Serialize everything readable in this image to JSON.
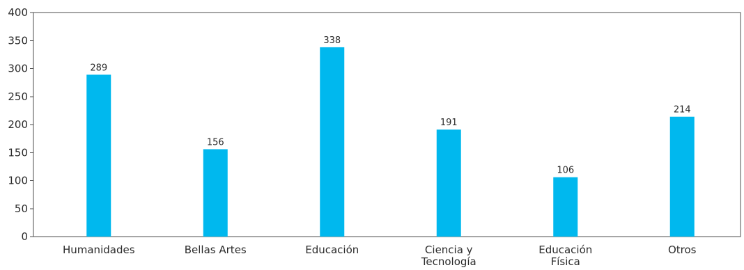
{
  "chart_data": {
    "type": "bar",
    "categories": [
      [
        "Humanidades"
      ],
      [
        "Bellas Artes"
      ],
      [
        "Educación"
      ],
      [
        "Ciencia y",
        "Tecnología"
      ],
      [
        "Educación",
        "Física"
      ],
      [
        "Otros"
      ]
    ],
    "values": [
      289,
      156,
      338,
      191,
      106,
      214
    ],
    "data_labels": [
      "289",
      "156",
      "338",
      "191",
      "106",
      "214"
    ],
    "title": "",
    "xlabel": "",
    "ylabel": "",
    "ylim": [
      0,
      400
    ],
    "yticks": [
      0,
      50,
      100,
      150,
      200,
      250,
      300,
      350,
      400
    ],
    "grid": false,
    "legend": "none",
    "bar_color": "#00b8ee"
  }
}
